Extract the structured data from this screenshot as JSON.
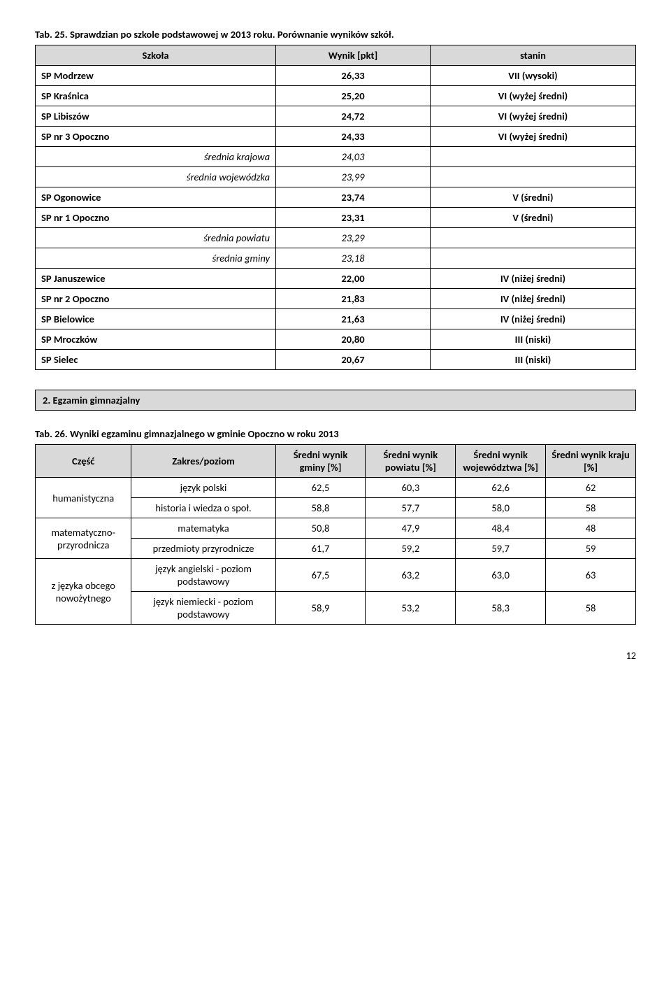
{
  "caption1": "Tab. 25. Sprawdzian po szkole podstawowej w 2013 roku. Porównanie wyników szkół.",
  "table1": {
    "headers": {
      "c1": "Szkoła",
      "c2": "Wynik [pkt]",
      "c3": "stanin"
    },
    "rows": [
      {
        "c1": "SP Modrzew",
        "c2": "26,33",
        "c3": "VII (wysoki)",
        "bold": true,
        "type": "data"
      },
      {
        "c1": "SP Kraśnica",
        "c2": "25,20",
        "c3": "VI (wyżej średni)",
        "bold": true,
        "type": "data"
      },
      {
        "c1": "SP Libiszów",
        "c2": "24,72",
        "c3": "VI (wyżej średni)",
        "bold": true,
        "type": "data"
      },
      {
        "c1": "SP nr 3 Opoczno",
        "c2": "24,33",
        "c3": "VI (wyżej średni)",
        "bold": true,
        "type": "data"
      },
      {
        "c1": "średnia krajowa",
        "c2": "24,03",
        "c3": "",
        "type": "avg"
      },
      {
        "c1": "średnia wojewódzka",
        "c2": "23,99",
        "c3": "",
        "type": "avg"
      },
      {
        "c1": "SP Ogonowice",
        "c2": "23,74",
        "c3": "V (średni)",
        "bold": true,
        "type": "data"
      },
      {
        "c1": "SP nr 1 Opoczno",
        "c2": "23,31",
        "c3": "V (średni)",
        "bold": true,
        "type": "data"
      },
      {
        "c1": "średnia powiatu",
        "c2": "23,29",
        "c3": "",
        "type": "avg"
      },
      {
        "c1": "średnia gminy",
        "c2": "23,18",
        "c3": "",
        "type": "avg"
      },
      {
        "c1": "SP Januszewice",
        "c2": "22,00",
        "c3": "IV (niżej średni)",
        "bold": true,
        "type": "data"
      },
      {
        "c1": "SP nr 2 Opoczno",
        "c2": "21,83",
        "c3": "IV (niżej średni)",
        "bold": true,
        "type": "data"
      },
      {
        "c1": "SP Bielowice",
        "c2": "21,63",
        "c3": "IV (niżej średni)",
        "bold": true,
        "type": "data"
      },
      {
        "c1": "SP Mroczków",
        "c2": "20,80",
        "c3": "III (niski)",
        "bold": true,
        "type": "data"
      },
      {
        "c1": "SP Sielec",
        "c2": "20,67",
        "c3": "III (niski)",
        "bold": true,
        "type": "data"
      }
    ]
  },
  "section2_title": "2. Egzamin gimnazjalny",
  "caption2": "Tab. 26. Wyniki egzaminu gimnazjalnego w gminie Opoczno w roku 2013",
  "table2": {
    "headers": {
      "c1": "Część",
      "c2": "Zakres/poziom",
      "c3": "Średni wynik gminy [%]",
      "c4": "Średni wynik powiatu [%]",
      "c5": "Średni wynik województwa [%]",
      "c6": "Średni wynik kraju [%]"
    },
    "groups": [
      {
        "part": "humanistyczna",
        "rows": [
          {
            "c2": "język polski",
            "c3": "62,5",
            "c4": "60,3",
            "c5": "62,6",
            "c6": "62"
          },
          {
            "c2": "historia i wiedza o społ.",
            "c3": "58,8",
            "c4": "57,7",
            "c5": "58,0",
            "c6": "58"
          }
        ]
      },
      {
        "part": "matematyczno-przyrodnicza",
        "rows": [
          {
            "c2": "matematyka",
            "c3": "50,8",
            "c4": "47,9",
            "c5": "48,4",
            "c6": "48"
          },
          {
            "c2": "przedmioty przyrodnicze",
            "c3": "61,7",
            "c4": "59,2",
            "c5": "59,7",
            "c6": "59"
          }
        ]
      },
      {
        "part": "z języka obcego nowożytnego",
        "rows": [
          {
            "c2": "język angielski - poziom podstawowy",
            "c3": "67,5",
            "c4": "63,2",
            "c5": "63,0",
            "c6": "63"
          },
          {
            "c2": "język niemiecki - poziom podstawowy",
            "c3": "58,9",
            "c4": "53,2",
            "c5": "58,3",
            "c6": "58"
          }
        ]
      }
    ]
  },
  "page_number": "12"
}
